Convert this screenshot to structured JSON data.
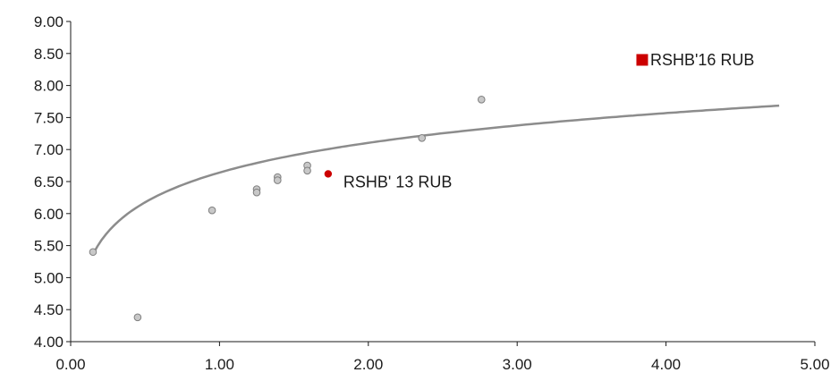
{
  "chart_data": {
    "type": "scatter",
    "title": "",
    "xlabel": "",
    "ylabel": "",
    "xlim": [
      0,
      5
    ],
    "ylim": [
      4,
      9
    ],
    "x_ticks": [
      "0.00",
      "1.00",
      "2.00",
      "3.00",
      "4.00",
      "5.00"
    ],
    "y_ticks": [
      "4.00",
      "4.50",
      "5.00",
      "5.50",
      "6.00",
      "6.50",
      "7.00",
      "7.50",
      "8.00",
      "8.50",
      "9.00"
    ],
    "grid": false,
    "legend": "none",
    "colors": {
      "peer": "#c8c8c8",
      "peer_stroke": "#7f7f7f",
      "trend": "#8c8c8c",
      "highlight": "#cc0000",
      "axis": "#1a1a1a"
    },
    "series": [
      {
        "x": [
          0.15,
          0.45,
          0.95,
          1.25,
          1.25,
          1.39,
          1.39,
          1.59,
          1.59,
          2.36,
          2.76
        ],
        "y": [
          5.4,
          4.38,
          6.05,
          6.38,
          6.33,
          6.57,
          6.52,
          6.75,
          6.67,
          7.18,
          7.78
        ]
      }
    ],
    "trendline": {
      "kind": "logarithmic",
      "x_from": 0.15,
      "x_to": 4.76,
      "a": 6.64,
      "b": 0.67
    },
    "annotations": [
      {
        "label": "RSHB' 13 RUB",
        "x": 1.73,
        "y": 6.62,
        "marker": "circle"
      },
      {
        "label": "RSHB'16 RUB",
        "x": 3.84,
        "y": 8.4,
        "marker": "square"
      }
    ]
  }
}
